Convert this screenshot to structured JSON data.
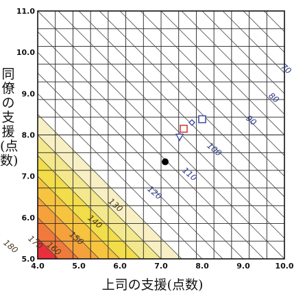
{
  "chart_data": {
    "type": "heatmap",
    "title": "",
    "xlabel": "上司の支援(点数)",
    "ylabel": "同僚の支援(点数)",
    "xlim": [
      4.0,
      10.0
    ],
    "ylim": [
      5.0,
      11.0
    ],
    "x_ticks": [
      "4.0",
      "5.0",
      "6.0",
      "7.0",
      "8.0",
      "9.0",
      "10.0"
    ],
    "y_ticks": [
      "5.0",
      "6.0",
      "7.0",
      "8.0",
      "9.0",
      "10.0",
      "11.0"
    ],
    "grid": true,
    "band_colors": [
      "#e8303c",
      "#f07a3c",
      "#f6a23c",
      "#f7c440",
      "#f2dd4a",
      "#f4e88e",
      "#f8f0c4",
      "#ffffff"
    ],
    "isolines": [
      {
        "label": "70",
        "x": 10.0,
        "y": 9.55
      },
      {
        "label": "80",
        "x": 9.7,
        "y": 8.85
      },
      {
        "label": "90",
        "x": 9.15,
        "y": 8.3
      },
      {
        "label": "100",
        "x": 8.25,
        "y": 7.6
      },
      {
        "label": "110",
        "x": 7.65,
        "y": 7.0
      },
      {
        "label": "120",
        "x": 6.8,
        "y": 6.55
      },
      {
        "label": "130",
        "x": 5.85,
        "y": 6.25
      },
      {
        "label": "140",
        "x": 5.35,
        "y": 5.85
      },
      {
        "label": "150",
        "x": 4.9,
        "y": 5.45
      },
      {
        "label": "160",
        "x": 4.35,
        "y": 5.2
      },
      {
        "label": "170",
        "x": 3.9,
        "y": 5.35
      },
      {
        "label": "180",
        "x": 3.3,
        "y": 5.25
      }
    ],
    "points": [
      {
        "marker": "circle-filled",
        "x": 7.1,
        "y": 7.35,
        "color": "#000000"
      },
      {
        "marker": "square",
        "x": 8.0,
        "y": 8.38,
        "color": "#3a4aa0"
      },
      {
        "marker": "square",
        "x": 7.55,
        "y": 8.15,
        "color": "#d0302a"
      },
      {
        "marker": "diamond",
        "x": 7.75,
        "y": 8.3,
        "color": "#3a4aa0"
      },
      {
        "marker": "triangle-down",
        "x": 7.45,
        "y": 7.95,
        "color": "#3a4aa0"
      }
    ]
  }
}
